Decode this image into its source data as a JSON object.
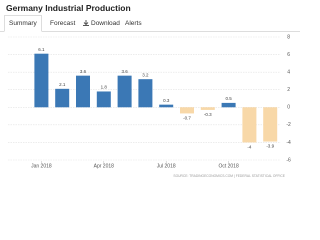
{
  "header": {
    "title": "Germany Industrial Production"
  },
  "tabs": [
    "Summary",
    "Forecast",
    "Download",
    "Alerts"
  ],
  "chart_data": {
    "type": "bar",
    "categories": [
      "Jan 2018",
      null,
      null,
      "Apr 2018",
      null,
      null,
      "Jul 2018",
      null,
      null,
      "Oct 2018",
      null,
      null
    ],
    "values": [
      6.1,
      2.1,
      3.6,
      1.8,
      3.6,
      3.2,
      0.3,
      -0.7,
      -0.3,
      0.5,
      -4,
      -3.9
    ],
    "color": "#3b78b5",
    "negative_color": "#f8d8a8",
    "ylim": [
      -6,
      8
    ],
    "yticks": [
      -6,
      -4,
      -2,
      0,
      2,
      4,
      6,
      8
    ],
    "grid": true,
    "y_axis_side": "right"
  },
  "footer": {
    "source": "SOURCE: TRADINGECONOMICS.COM | FEDERAL STATISTICAL OFFICE"
  }
}
